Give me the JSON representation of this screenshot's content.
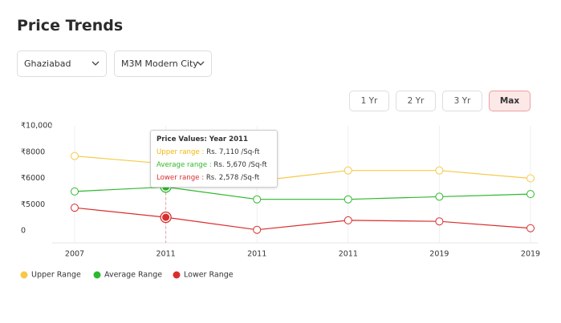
{
  "header": {
    "title": "Price Trends"
  },
  "filters": [
    "Ghaziabad",
    "M3M Modern City"
  ],
  "range_buttons": [
    "1 Yr",
    "2 Yr",
    "3 Yr",
    "Max"
  ],
  "tooltip": {
    "title": "Price Values: Year 2011",
    "rows": [
      {
        "label": "Upper range",
        "value": "Rs. 7,110 /Sq-ft"
      },
      {
        "label": "Average range",
        "value": "Rs. 5,670 /Sq-ft"
      },
      {
        "label": "Lower range",
        "value": "Rs. 2,578 /Sq-ft"
      }
    ]
  },
  "chart_data": {
    "type": "line",
    "categories": [
      "2007",
      "2011",
      "2011",
      "2011",
      "2019",
      "2019"
    ],
    "series": [
      {
        "name": "Upper Range",
        "color": "#f7c948",
        "values": [
          7700,
          7110,
          5900,
          6600,
          6600,
          6000
        ]
      },
      {
        "name": "Average Range",
        "color": "#2eb82e",
        "values": [
          5500,
          5670,
          5200,
          5200,
          5300,
          5400
        ]
      },
      {
        "name": "Lower Range",
        "color": "#d92e2e",
        "values": [
          4400,
          2578,
          200,
          2000,
          1800,
          500
        ]
      }
    ],
    "ylim": [
      0,
      10000
    ],
    "yticks": [
      {
        "value": 0,
        "label": "0"
      },
      {
        "value": 5000,
        "label": "₹5000"
      },
      {
        "value": 6000,
        "label": "₹6000"
      },
      {
        "value": 8000,
        "label": "₹8000"
      },
      {
        "value": 10000,
        "label": "₹10,000"
      }
    ],
    "y_scale": "tick-spaced",
    "highlight_index": 1,
    "grid": true,
    "legend": "bottom-left"
  }
}
